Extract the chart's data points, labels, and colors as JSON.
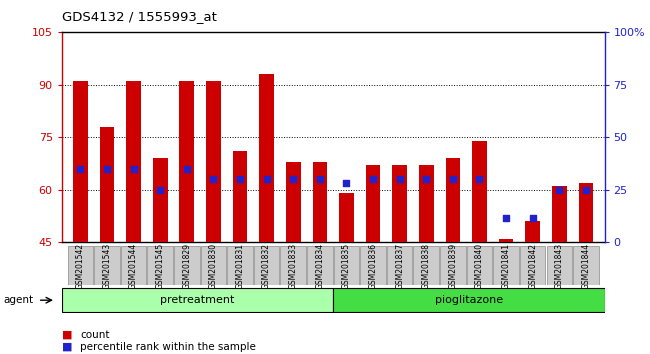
{
  "title": "GDS4132 / 1555993_at",
  "categories": [
    "GSM201542",
    "GSM201543",
    "GSM201544",
    "GSM201545",
    "GSM201829",
    "GSM201830",
    "GSM201831",
    "GSM201832",
    "GSM201833",
    "GSM201834",
    "GSM201835",
    "GSM201836",
    "GSM201837",
    "GSM201838",
    "GSM201839",
    "GSM201840",
    "GSM201841",
    "GSM201842",
    "GSM201843",
    "GSM201844"
  ],
  "count_values": [
    91,
    78,
    91,
    69,
    91,
    91,
    71,
    93,
    68,
    68,
    59,
    67,
    67,
    67,
    69,
    74,
    46,
    51,
    61,
    62
  ],
  "percentile_values_left": [
    66,
    66,
    66,
    60,
    66,
    63,
    63,
    63,
    63,
    63,
    62,
    63,
    63,
    63,
    63,
    63,
    52,
    52,
    60,
    60
  ],
  "pretreatment_count": 10,
  "pioglitazone_count": 10,
  "ylim_left": [
    45,
    105
  ],
  "ylim_right": [
    0,
    100
  ],
  "yticks_left": [
    45,
    60,
    75,
    90,
    105
  ],
  "yticks_right": [
    0,
    25,
    50,
    75,
    100
  ],
  "ytick_labels_right": [
    "0",
    "25",
    "50",
    "75",
    "100%"
  ],
  "bar_color": "#cc0000",
  "dot_color": "#2222cc",
  "bar_width": 0.55,
  "pretreatment_color": "#aaffaa",
  "pioglitazone_color": "#44dd44",
  "agent_label": "agent",
  "pretreatment_label": "pretreatment",
  "pioglitazone_label": "pioglitazone",
  "legend_count_label": "count",
  "legend_percentile_label": "percentile rank within the sample",
  "title_color": "#000000",
  "left_axis_color": "#cc0000",
  "right_axis_color": "#2222cc",
  "plot_bg_color": "#ffffff",
  "tick_box_color": "#cccccc"
}
